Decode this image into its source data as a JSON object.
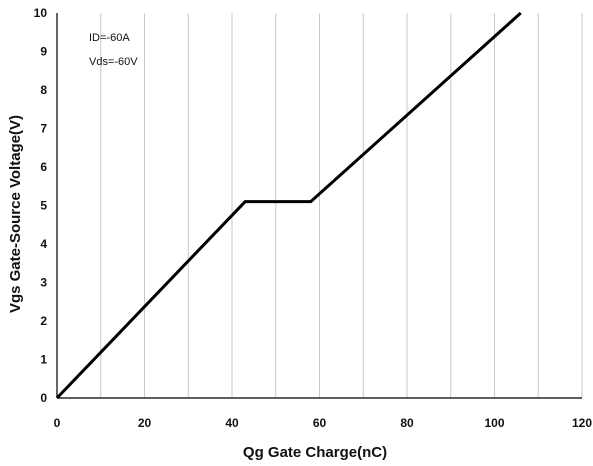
{
  "chart_data": {
    "type": "line",
    "xlabel": "Qg Gate Charge(nC)",
    "ylabel": "Vgs Gate-Source Voltage(V)",
    "xlim": [
      0,
      120
    ],
    "ylim": [
      0,
      10
    ],
    "x_ticks": [
      0,
      20,
      40,
      60,
      80,
      100,
      120
    ],
    "y_ticks": [
      0,
      1,
      2,
      3,
      4,
      5,
      6,
      7,
      8,
      9,
      10
    ],
    "grid": "vertical",
    "legend": "none",
    "line_color": "#000000",
    "annotations": [
      "ID=-60A",
      "Vds=-60V"
    ],
    "series": [
      {
        "x": [
          0,
          43,
          58,
          106
        ],
        "y": [
          0,
          5.1,
          5.1,
          10
        ]
      }
    ]
  }
}
